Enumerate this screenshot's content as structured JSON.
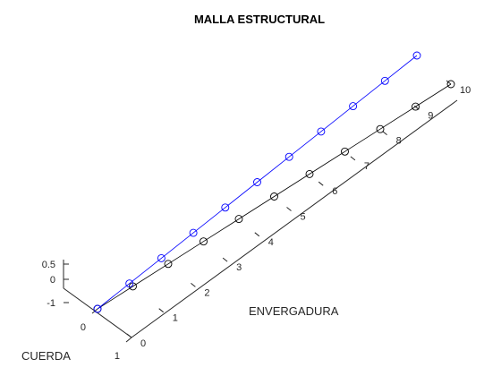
{
  "chart_data": {
    "type": "line",
    "projection": "3d",
    "title": "MALLA ESTRUCTURAL",
    "xlabel": "ENVERGADURA",
    "ylabel": "CUERDA",
    "zlabel": "",
    "x_ticks": [
      0,
      1,
      2,
      3,
      4,
      5,
      6,
      7,
      8,
      9,
      10
    ],
    "y_ticks": [
      0,
      1
    ],
    "z_ticks": [
      -1,
      0,
      0.5
    ],
    "xlim": [
      0,
      10
    ],
    "ylim": [
      0,
      1
    ],
    "zlim": [
      -1,
      0.5
    ],
    "grid": false,
    "legend": "none",
    "marker": "circle",
    "series": [
      {
        "color": "#0000ff",
        "x": [
          0,
          1,
          2,
          3,
          4,
          5,
          6,
          7,
          8,
          9,
          10
        ],
        "y": [
          0,
          0,
          0,
          0,
          0,
          0,
          0,
          0,
          0,
          0,
          0
        ],
        "z": [
          0,
          0,
          0,
          0,
          0,
          0,
          0,
          0,
          0,
          0,
          0
        ]
      },
      {
        "color": "#000000",
        "x": [
          0,
          1,
          2,
          3,
          4,
          5,
          6,
          7,
          8,
          9,
          10
        ],
        "y": [
          0,
          0.1,
          0.2,
          0.3,
          0.4,
          0.5,
          0.6,
          0.7,
          0.8,
          0.9,
          1
        ],
        "z": [
          0,
          0,
          0,
          0,
          0,
          0,
          0,
          0,
          0,
          0,
          0
        ]
      }
    ]
  }
}
